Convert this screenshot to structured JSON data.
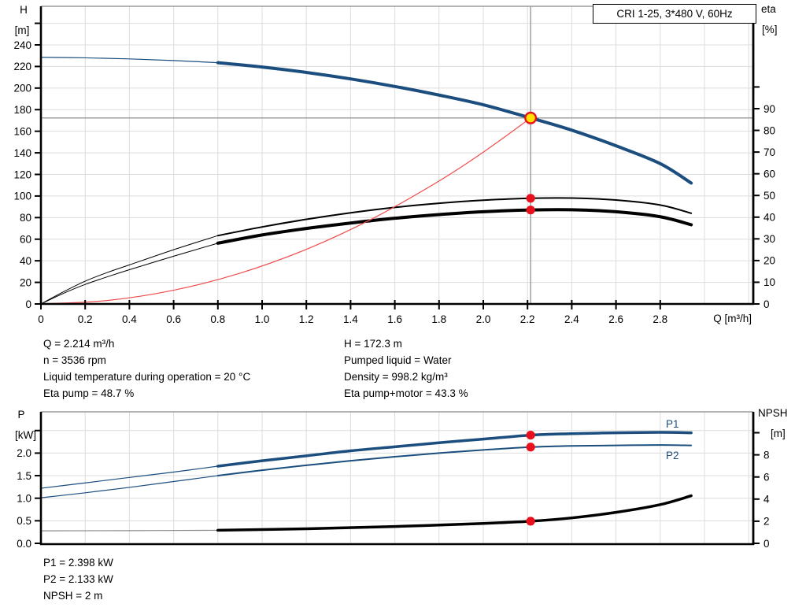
{
  "title_box": "CRI 1-25, 3*480 V, 60Hz",
  "colors": {
    "curve_blue": "#1b4e7e",
    "curve_black": "#000000",
    "system_red": "#ef4d4d",
    "marker_red": "#e8101c",
    "duty_fill": "#ffe100",
    "duty_stroke": "#e8101c",
    "crosshair_gray": "#999999",
    "extension_gray": "#8a8a8a",
    "grid": "#dcdcdc",
    "frame": "#000000",
    "frame_top": "#888888"
  },
  "axis_corner": {
    "top_left_1": "H",
    "top_left_2": "[m]",
    "top_right_1": "eta",
    "top_right_2": "[%]",
    "x_axis_label": "Q [m³/h]",
    "bottom_left_1": "P",
    "bottom_left_2": "[kW]",
    "bottom_right_1": "NPSH",
    "bottom_right_2": "[m]"
  },
  "curve_labels": {
    "p1": "P1",
    "p2": "P2"
  },
  "info_top": {
    "left": [
      "Q = 2.214 m³/h",
      "n = 3536 rpm",
      "Liquid temperature during operation = 20 °C",
      "Eta pump = 48.7 %"
    ],
    "right": [
      "H = 172.3 m",
      "Pumped liquid = Water",
      "Density = 998.2 kg/m³",
      "Eta pump+motor = 43.3 %"
    ]
  },
  "info_bottom": [
    "P1 = 2.398 kW",
    "P2 = 2.133 kW",
    "NPSH = 2 m"
  ],
  "operating_point": {
    "Q": 2.214,
    "H": 172.3,
    "eta_pump": 48.7,
    "eta_pump_motor": 43.3,
    "P1": 2.398,
    "P2": 2.133,
    "NPSH": 2.0
  },
  "chart_data": [
    {
      "type": "line",
      "title": "QH and efficiency curves",
      "xlabel": "Q [m³/h]",
      "ylabel_left": "H [m]",
      "ylabel_right": "eta [%]",
      "xlim": [
        0,
        3.22
      ],
      "ylim_left": [
        0,
        275
      ],
      "ylim_right": [
        0,
        100
      ],
      "x_tick_values": [
        0,
        0.2,
        0.4,
        0.6,
        0.8,
        1.0,
        1.2,
        1.4,
        1.6,
        1.8,
        2.0,
        2.2,
        2.4,
        2.6,
        2.8
      ],
      "x_tick_labels": [
        "0",
        "0.2",
        "0.4",
        "0.6",
        "0.8",
        "1.0",
        "1.2",
        "1.4",
        "1.6",
        "1.8",
        "2.0",
        "2.2",
        "2.4",
        "2.6",
        "2.8"
      ],
      "x_grid_values": [
        0.2,
        0.4,
        0.6,
        0.8,
        1.0,
        1.2,
        1.4,
        1.6,
        1.8,
        2.0,
        2.2,
        2.4,
        2.6,
        2.8,
        3.0,
        3.2
      ],
      "left_tick_values": [
        0,
        20,
        40,
        60,
        80,
        100,
        120,
        140,
        160,
        180,
        200,
        220,
        240
      ],
      "left_tick_labels": [
        "0",
        "20",
        "40",
        "60",
        "80",
        "100",
        "120",
        "140",
        "160",
        "180",
        "200",
        "220",
        "240"
      ],
      "left_extra_ticks": [
        260
      ],
      "left_grid_values": [
        20,
        40,
        60,
        80,
        100,
        120,
        140,
        160,
        180,
        200,
        220,
        240,
        260
      ],
      "right_tick_values": [
        0,
        10,
        20,
        30,
        40,
        50,
        60,
        70,
        80,
        90
      ],
      "right_tick_labels": [
        "0",
        "10",
        "20",
        "30",
        "40",
        "50",
        "60",
        "70",
        "80",
        "90"
      ],
      "right_extra_ticks": [
        100
      ],
      "crosshair": {
        "x": 2.214,
        "y": 172.3,
        "axis": "left"
      },
      "series": [
        {
          "name": "qh-extension",
          "axis": "left",
          "color": "curve_blue",
          "width": 1.2,
          "x": [
            0,
            0.2,
            0.4,
            0.6,
            0.8
          ],
          "y": [
            228.5,
            228,
            227,
            225.5,
            223.5
          ]
        },
        {
          "name": "qh-curve",
          "axis": "left",
          "color": "curve_blue",
          "width": 4,
          "x": [
            0.8,
            1.0,
            1.2,
            1.4,
            1.6,
            1.8,
            2.0,
            2.214,
            2.4,
            2.6,
            2.8,
            2.94
          ],
          "y": [
            223.5,
            219.5,
            214.5,
            208.5,
            201.5,
            193.5,
            184.5,
            172.3,
            161,
            146.5,
            130,
            112
          ]
        },
        {
          "name": "eta-pump-extension",
          "axis": "right",
          "color": "curve_black",
          "width": 1,
          "x": [
            0,
            0.1,
            0.2,
            0.3,
            0.4,
            0.6,
            0.8
          ],
          "y": [
            0,
            5.5,
            10.5,
            14.5,
            18,
            25,
            31.5
          ]
        },
        {
          "name": "eta-pump-curve",
          "axis": "right",
          "color": "curve_black",
          "width": 2,
          "x": [
            0.8,
            1.0,
            1.2,
            1.4,
            1.6,
            1.8,
            2.0,
            2.214,
            2.4,
            2.6,
            2.8,
            2.94
          ],
          "y": [
            31.5,
            35.5,
            39,
            42,
            44.5,
            46.4,
            47.8,
            48.7,
            48.8,
            47.9,
            45.6,
            41.8
          ]
        },
        {
          "name": "eta-pump-motor-extension",
          "axis": "right",
          "color": "curve_black",
          "width": 1,
          "x": [
            0,
            0.1,
            0.2,
            0.3,
            0.4,
            0.6,
            0.8
          ],
          "y": [
            0,
            4.8,
            9,
            12.5,
            15.8,
            22,
            28
          ]
        },
        {
          "name": "eta-pump-motor-curve",
          "axis": "right",
          "color": "curve_black",
          "width": 4,
          "x": [
            0.8,
            1.0,
            1.2,
            1.4,
            1.6,
            1.8,
            2.0,
            2.214,
            2.4,
            2.6,
            2.8,
            2.94
          ],
          "y": [
            28,
            31.8,
            34.8,
            37.3,
            39.5,
            41.2,
            42.5,
            43.3,
            43.4,
            42.5,
            40.2,
            36.5
          ]
        },
        {
          "name": "system-curve",
          "axis": "left",
          "color": "system_red",
          "width": 1.2,
          "x": [
            0,
            0.3,
            0.6,
            0.9,
            1.2,
            1.5,
            1.8,
            2.0,
            2.214
          ],
          "y": [
            0,
            3.2,
            12.7,
            28.5,
            50.6,
            79.1,
            113.9,
            140.6,
            172.3
          ]
        }
      ],
      "markers": [
        {
          "name": "duty-point",
          "x": 2.214,
          "y": 172.3,
          "axis": "left",
          "style": "duty"
        },
        {
          "name": "eta-pump-point",
          "x": 2.214,
          "y": 48.7,
          "axis": "right",
          "style": "red"
        },
        {
          "name": "eta-pump-motor-point",
          "x": 2.214,
          "y": 43.3,
          "axis": "right",
          "style": "red"
        }
      ]
    },
    {
      "type": "line",
      "title": "Power and NPSH curves",
      "xlabel": "Q [m³/h]",
      "ylabel_left": "P [kW]",
      "ylabel_right": "NPSH [m]",
      "xlim": [
        0,
        3.22
      ],
      "ylim_left": [
        0,
        2.9
      ],
      "ylim_right": [
        0,
        12
      ],
      "x_tick_values": [],
      "x_tick_labels": [],
      "x_grid_values": [
        0.2,
        0.4,
        0.6,
        0.8,
        1.0,
        1.2,
        1.4,
        1.6,
        1.8,
        2.0,
        2.2,
        2.4,
        2.6,
        2.8,
        3.0,
        3.2
      ],
      "left_tick_values": [
        0,
        0.5,
        1.0,
        1.5,
        2.0
      ],
      "left_tick_labels": [
        "0.0",
        "0.5",
        "1.0",
        "1.5",
        "2.0"
      ],
      "left_extra_ticks": [
        2.5
      ],
      "left_grid_values": [
        0.5,
        1.0,
        1.5,
        2.0,
        2.5
      ],
      "right_tick_values": [
        0,
        2,
        4,
        6,
        8
      ],
      "right_tick_labels": [
        "0",
        "2",
        "4",
        "6",
        "8"
      ],
      "right_extra_ticks": [
        10
      ],
      "crosshair": null,
      "series": [
        {
          "name": "p1-extension",
          "axis": "left",
          "color": "curve_blue",
          "width": 1.2,
          "x": [
            0,
            0.2,
            0.4,
            0.6,
            0.8
          ],
          "y": [
            1.22,
            1.34,
            1.46,
            1.58,
            1.71
          ]
        },
        {
          "name": "p1-curve",
          "axis": "left",
          "color": "curve_blue",
          "width": 3.5,
          "x": [
            0.8,
            1.0,
            1.2,
            1.4,
            1.6,
            1.8,
            2.0,
            2.214,
            2.4,
            2.6,
            2.8,
            2.94
          ],
          "y": [
            1.71,
            1.83,
            1.94,
            2.05,
            2.14,
            2.23,
            2.31,
            2.398,
            2.43,
            2.45,
            2.46,
            2.45
          ]
        },
        {
          "name": "p2-extension",
          "axis": "left",
          "color": "curve_blue",
          "width": 1.2,
          "x": [
            0,
            0.2,
            0.4,
            0.6,
            0.8
          ],
          "y": [
            1.01,
            1.12,
            1.24,
            1.37,
            1.5
          ]
        },
        {
          "name": "p2-curve",
          "axis": "left",
          "color": "curve_blue",
          "width": 2,
          "x": [
            0.8,
            1.0,
            1.2,
            1.4,
            1.6,
            1.8,
            2.0,
            2.214,
            2.4,
            2.6,
            2.8,
            2.94
          ],
          "y": [
            1.5,
            1.62,
            1.73,
            1.83,
            1.92,
            2.0,
            2.07,
            2.133,
            2.16,
            2.17,
            2.18,
            2.17
          ]
        },
        {
          "name": "npsh-extension",
          "axis": "right",
          "color": "extension_gray",
          "width": 1.2,
          "x": [
            0,
            0.4,
            0.8
          ],
          "y": [
            1.13,
            1.15,
            1.18
          ]
        },
        {
          "name": "npsh-curve",
          "axis": "right",
          "color": "curve_black",
          "width": 3.5,
          "x": [
            0.8,
            1.2,
            1.6,
            2.0,
            2.214,
            2.4,
            2.6,
            2.8,
            2.94
          ],
          "y": [
            1.18,
            1.32,
            1.52,
            1.8,
            2.0,
            2.3,
            2.8,
            3.5,
            4.3
          ]
        }
      ],
      "markers": [
        {
          "name": "p1-point",
          "x": 2.214,
          "y": 2.398,
          "axis": "left",
          "style": "red"
        },
        {
          "name": "p2-point",
          "x": 2.214,
          "y": 2.133,
          "axis": "left",
          "style": "red"
        },
        {
          "name": "npsh-point",
          "x": 2.214,
          "y": 2.0,
          "axis": "right",
          "style": "red"
        }
      ]
    }
  ]
}
